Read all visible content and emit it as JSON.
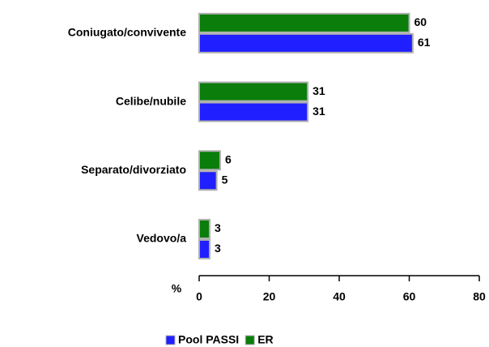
{
  "chart_data": {
    "type": "hbar",
    "categories": [
      "Coniugato/convivente",
      "Celibe/nubile",
      "Separato/divorziato",
      "Vedovo/a"
    ],
    "series": [
      {
        "name": "Pool PASSI",
        "color": "#1f1fff",
        "values": [
          61,
          31,
          5,
          3
        ]
      },
      {
        "name": "ER",
        "color": "#0a7d0a",
        "values": [
          60,
          31,
          6,
          3
        ]
      }
    ],
    "xlabel": "%",
    "xlim": [
      0,
      80
    ],
    "xticks": [
      0,
      20,
      40,
      60,
      80
    ],
    "legend": "bottom"
  }
}
